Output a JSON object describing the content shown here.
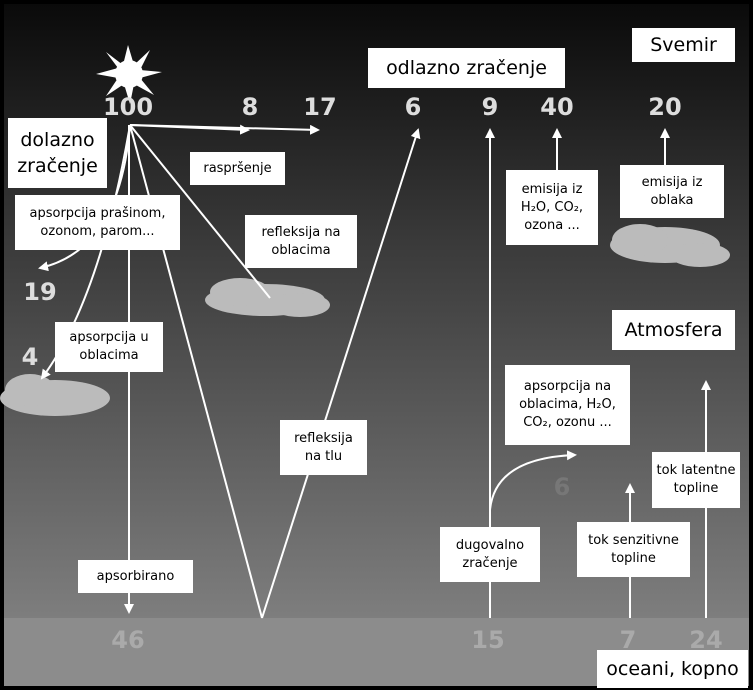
{
  "regions": {
    "space": "Svemir",
    "atmosphere": "Atmosfera",
    "surface": "oceani, kopno"
  },
  "labels": {
    "outgoing": "odlazno zračenje",
    "incoming": [
      "dolazno",
      "zračenje"
    ],
    "scattering": "raspršenje",
    "dust_absorption": [
      "apsorpcija prašinom,",
      "ozonom, parom..."
    ],
    "cloud_reflection": [
      "refleksija na",
      "oblacima"
    ],
    "gas_emission": [
      "emisija iz",
      "H₂O, CO₂,",
      "ozona ..."
    ],
    "cloud_emission": [
      "emisija iz",
      "oblaka"
    ],
    "cloud_absorption": [
      "apsorpcija u",
      "oblacima"
    ],
    "lw_absorption": [
      "apsorpcija na",
      "oblacima, H₂O,",
      "CO₂, ozonu ..."
    ],
    "ground_reflection": [
      "refleksija",
      "na tlu"
    ],
    "latent_heat": [
      "tok latentne",
      "topline"
    ],
    "longwave": [
      "dugovalno",
      "zračenje"
    ],
    "sensible_heat": [
      "tok senzitivne",
      "topline"
    ],
    "absorbed": "apsorbirano"
  },
  "numbers": {
    "incoming": "100",
    "scattered": "8",
    "cloud_reflected": "17",
    "ground_reflected": "6",
    "longwave_out": "9",
    "gas_emitted": "40",
    "cloud_emitted": "20",
    "dust_absorbed": "19",
    "cloud_absorbed": "4",
    "lw_absorbed": "6",
    "surface_absorbed": "46",
    "longwave_up": "15",
    "sensible": "7",
    "latent": "24"
  }
}
